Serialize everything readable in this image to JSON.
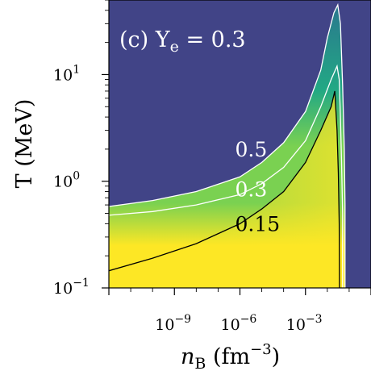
{
  "chart_data": {
    "type": "heatmap",
    "panel_label": "(c) Y",
    "panel_label_sub": "e",
    "panel_label_value": " = 0.3",
    "xlabel": "n",
    "xlabel_sub": "B",
    "xlabel_unit": " (fm",
    "xlabel_unit_exp": "−3",
    "xlabel_unit_close": ")",
    "ylabel": "T (MeV)",
    "x_scale": "log",
    "y_scale": "log",
    "xlim": [
      1e-12,
      1
    ],
    "ylim": [
      0.1,
      50
    ],
    "x_ticks": [
      {
        "value": 1e-09,
        "base": "10",
        "exp": "−9"
      },
      {
        "value": 1e-06,
        "base": "10",
        "exp": "−6"
      },
      {
        "value": 0.001,
        "base": "10",
        "exp": "−3"
      }
    ],
    "y_ticks": [
      {
        "value": 0.1,
        "base": "10",
        "exp": "−1"
      },
      {
        "value": 1,
        "base": "10",
        "exp": "0"
      },
      {
        "value": 10,
        "base": "10",
        "exp": "1"
      }
    ],
    "colormap": [
      "#440154",
      "#414487",
      "#2a788e",
      "#22a884",
      "#7ad151",
      "#fde725"
    ],
    "contours": [
      {
        "level": "0.5",
        "label": "0.5",
        "color": "#ffffff",
        "label_at": [
          1e-06,
          1.7
        ],
        "points": [
          [
            1e-12,
            0.58
          ],
          [
            1e-10,
            0.66
          ],
          [
            1e-08,
            0.8
          ],
          [
            1e-06,
            1.1
          ],
          [
            1e-05,
            1.5
          ],
          [
            0.0001,
            2.3
          ],
          [
            0.001,
            4.5
          ],
          [
            0.005,
            11
          ],
          [
            0.01,
            22
          ],
          [
            0.02,
            38
          ],
          [
            0.03,
            45
          ],
          [
            0.04,
            30
          ],
          [
            0.05,
            8
          ],
          [
            0.06,
            2
          ],
          [
            0.065,
            0.6
          ],
          [
            0.065,
            0.1
          ]
        ]
      },
      {
        "level": "0.3",
        "label": "0.3",
        "color": "#ffffff",
        "label_at": [
          1e-06,
          0.72
        ],
        "points": [
          [
            1e-12,
            0.48
          ],
          [
            1e-10,
            0.52
          ],
          [
            1e-08,
            0.6
          ],
          [
            1e-06,
            0.75
          ],
          [
            1e-05,
            0.95
          ],
          [
            0.0001,
            1.35
          ],
          [
            0.001,
            2.4
          ],
          [
            0.005,
            5
          ],
          [
            0.015,
            9
          ],
          [
            0.028,
            12
          ],
          [
            0.035,
            9
          ],
          [
            0.04,
            4
          ],
          [
            0.045,
            1.5
          ],
          [
            0.05,
            0.5
          ],
          [
            0.05,
            0.1
          ]
        ]
      },
      {
        "level": "0.15",
        "label": "0.15",
        "color": "#000000",
        "label_at": [
          1e-06,
          0.34
        ],
        "points": [
          [
            1e-12,
            0.145
          ],
          [
            1e-10,
            0.19
          ],
          [
            1e-08,
            0.26
          ],
          [
            1e-06,
            0.4
          ],
          [
            1e-05,
            0.55
          ],
          [
            0.0001,
            0.8
          ],
          [
            0.001,
            1.5
          ],
          [
            0.005,
            3
          ],
          [
            0.015,
            5
          ],
          [
            0.022,
            7
          ],
          [
            0.028,
            3
          ],
          [
            0.032,
            1.2
          ],
          [
            0.035,
            0.4
          ],
          [
            0.036,
            0.1
          ]
        ]
      }
    ]
  }
}
